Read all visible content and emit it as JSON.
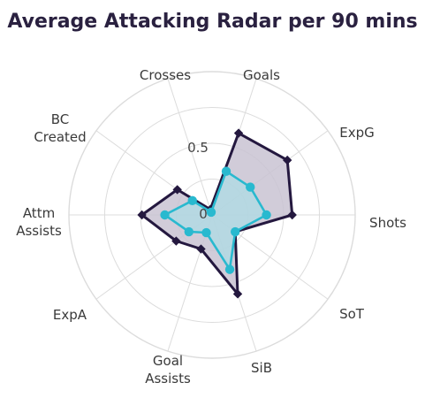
{
  "chart_data": {
    "type": "radar",
    "title": "Average Attacking Radar per 90 mins",
    "axes": [
      "Goals",
      "ExpG",
      "Shots",
      "SoT",
      "SiB",
      "Goal Assists",
      "ExpA",
      "Attm Assists",
      "BC Created",
      "Crosses"
    ],
    "axis_label_lines": [
      [
        "Goals"
      ],
      [
        "ExpG"
      ],
      [
        "Shots"
      ],
      [
        "SoT"
      ],
      [
        "SiB"
      ],
      [
        "Goal",
        "Assists"
      ],
      [
        "ExpA"
      ],
      [
        "Attm",
        "Assists"
      ],
      [
        "BC",
        "Created"
      ],
      [
        "Crosses"
      ]
    ],
    "ticks": [
      "0",
      "0.5"
    ],
    "range": [
      0,
      1
    ],
    "grid": true,
    "series": [
      {
        "values": [
          0.6,
          0.65,
          0.56,
          0.2,
          0.58,
          0.25,
          0.31,
          0.49,
          0.3,
          0.04
        ],
        "color": "#24183f",
        "fill": "#c9c3d2"
      },
      {
        "values": [
          0.32,
          0.33,
          0.38,
          0.2,
          0.4,
          0.13,
          0.2,
          0.33,
          0.17,
          0.02
        ],
        "color": "#29b9cf",
        "fill": "#a9dfe6"
      }
    ]
  }
}
